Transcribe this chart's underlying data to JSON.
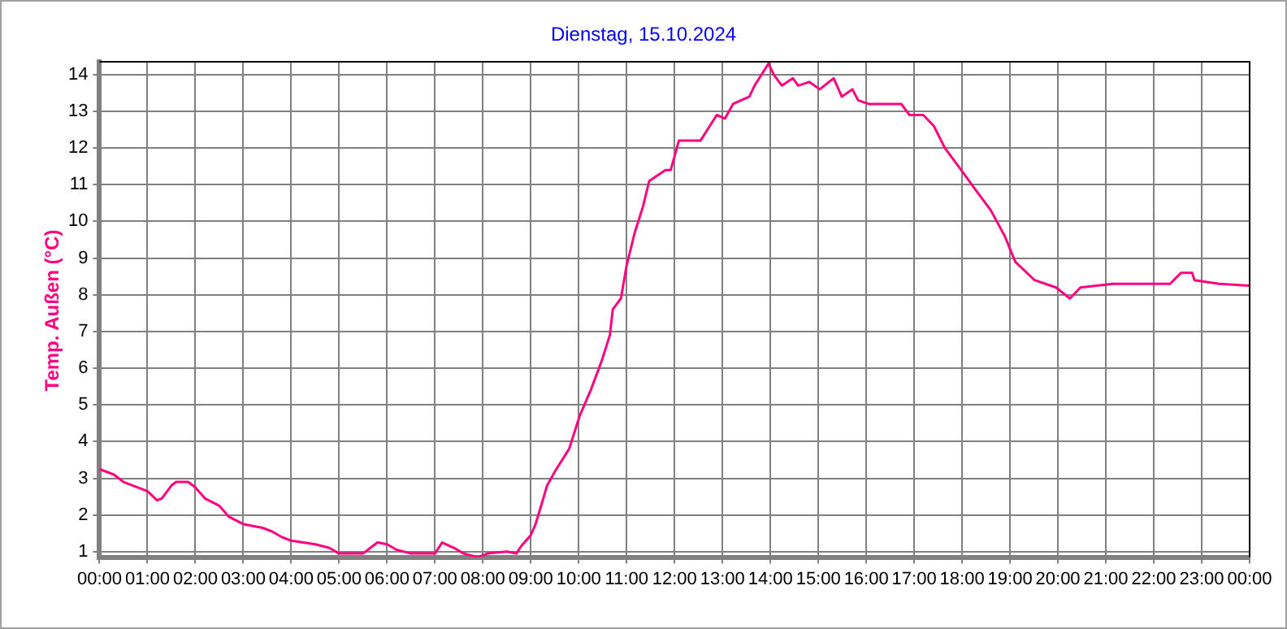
{
  "chart_data": {
    "type": "line",
    "title": "Dienstag, 15.10.2024",
    "ylabel": "Temp. Außen  (°C)",
    "x": [
      0,
      0.3,
      0.5,
      0.8,
      1.0,
      1.2,
      1.3,
      1.5,
      1.6,
      1.85,
      2.0,
      2.2,
      2.5,
      2.7,
      3.0,
      3.4,
      3.6,
      3.8,
      4.0,
      4.5,
      4.8,
      5.0,
      5.5,
      5.7,
      5.8,
      6.0,
      6.2,
      6.5,
      7.0,
      7.15,
      7.4,
      7.6,
      7.9,
      8.1,
      8.5,
      8.7,
      8.8,
      9.0,
      9.1,
      9.34,
      9.51,
      9.8,
      10.02,
      10.25,
      10.48,
      10.65,
      10.71,
      10.88,
      11.0,
      11.17,
      11.34,
      11.47,
      11.81,
      11.92,
      12.09,
      12.54,
      12.88,
      13.05,
      13.22,
      13.56,
      13.67,
      13.96,
      14.07,
      14.24,
      14.47,
      14.58,
      14.81,
      15.03,
      15.32,
      15.49,
      15.71,
      15.83,
      16.05,
      16.73,
      16.9,
      17.19,
      17.41,
      17.64,
      17.98,
      18.26,
      18.6,
      18.89,
      19.11,
      19.51,
      19.96,
      20.25,
      20.47,
      21.15,
      21.72,
      22.34,
      22.57,
      22.8,
      22.85,
      23.36,
      23.99
    ],
    "series": [
      {
        "color": "#ff0080",
        "values": [
          3.25,
          3.1,
          2.9,
          2.75,
          2.65,
          2.4,
          2.45,
          2.8,
          2.9,
          2.9,
          2.75,
          2.45,
          2.25,
          1.95,
          1.75,
          1.65,
          1.55,
          1.4,
          1.3,
          1.2,
          1.1,
          0.95,
          0.95,
          1.15,
          1.25,
          1.2,
          1.05,
          0.95,
          0.95,
          1.25,
          1.1,
          0.95,
          0.85,
          0.95,
          1.0,
          0.95,
          1.15,
          1.45,
          1.75,
          2.8,
          3.2,
          3.8,
          4.7,
          5.4,
          6.2,
          6.9,
          7.6,
          7.9,
          8.8,
          9.7,
          10.4,
          11.1,
          11.4,
          11.4,
          12.2,
          12.2,
          12.9,
          12.8,
          13.2,
          13.4,
          13.7,
          14.3,
          14.0,
          13.7,
          13.9,
          13.7,
          13.8,
          13.6,
          13.9,
          13.4,
          13.6,
          13.3,
          13.2,
          13.2,
          12.9,
          12.9,
          12.6,
          12.0,
          11.4,
          10.9,
          10.3,
          9.6,
          8.9,
          8.4,
          8.2,
          7.9,
          8.2,
          8.3,
          8.3,
          8.3,
          8.6,
          8.6,
          8.4,
          8.3,
          8.25
        ]
      }
    ],
    "xlim": [
      0,
      24
    ],
    "xticks": [
      {
        "value": 0,
        "label": "00:00"
      },
      {
        "value": 1,
        "label": "01:00"
      },
      {
        "value": 2,
        "label": "02:00"
      },
      {
        "value": 3,
        "label": "03:00"
      },
      {
        "value": 4,
        "label": "04:00"
      },
      {
        "value": 5,
        "label": "05:00"
      },
      {
        "value": 6,
        "label": "06:00"
      },
      {
        "value": 7,
        "label": "07:00"
      },
      {
        "value": 8,
        "label": "08:00"
      },
      {
        "value": 9,
        "label": "09:00"
      },
      {
        "value": 10,
        "label": "10:00"
      },
      {
        "value": 11,
        "label": "11:00"
      },
      {
        "value": 12,
        "label": "12:00"
      },
      {
        "value": 13,
        "label": "13:00"
      },
      {
        "value": 14,
        "label": "14:00"
      },
      {
        "value": 15,
        "label": "15:00"
      },
      {
        "value": 16,
        "label": "16:00"
      },
      {
        "value": 17,
        "label": "17:00"
      },
      {
        "value": 18,
        "label": "18:00"
      },
      {
        "value": 19,
        "label": "19:00"
      },
      {
        "value": 20,
        "label": "20:00"
      },
      {
        "value": 21,
        "label": "21:00"
      },
      {
        "value": 22,
        "label": "22:00"
      },
      {
        "value": 23,
        "label": "23:00"
      },
      {
        "value": 24,
        "label": "00:00"
      }
    ],
    "ylim": [
      0.85,
      14.35
    ],
    "yticks": [
      1,
      2,
      3,
      4,
      5,
      6,
      7,
      8,
      9,
      10,
      11,
      12,
      13,
      14
    ],
    "grid": true,
    "legend": false,
    "marker": "none",
    "line_style": "solid"
  }
}
